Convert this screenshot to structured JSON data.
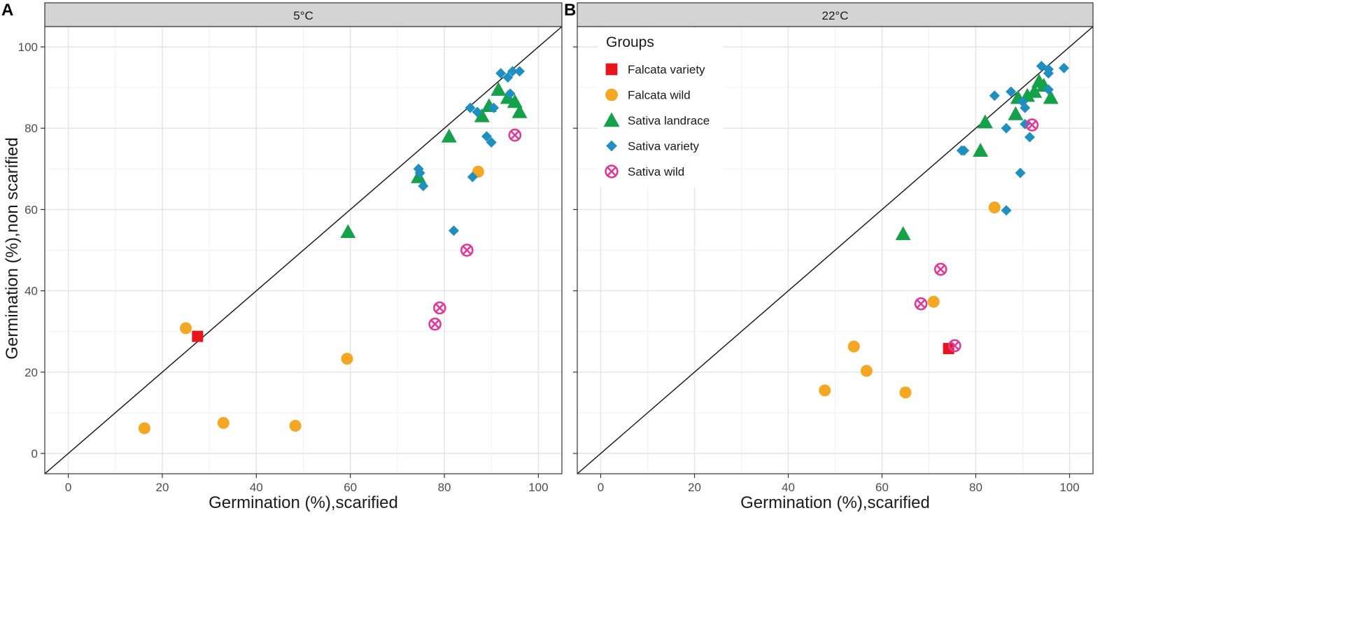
{
  "figure": {
    "ylabel": "Germination (%),non scarified",
    "xlabel": "Germination (%),scarified",
    "colors": {
      "Falcata variety": "#e8141c",
      "Falcata wild": "#f5a623",
      "Sativa landrace": "#15a04a",
      "Sativa variety": "#1e8fc0",
      "Sativa wild": "#e0399a",
      "strip": "#d4d4d4",
      "grid": "#e6e6e6",
      "panel_border": "#333333"
    }
  },
  "legend": {
    "title": "Groups",
    "items": [
      {
        "label": "Falcata variety",
        "shape": "square-icon"
      },
      {
        "label": "Falcata wild",
        "shape": "circle-icon"
      },
      {
        "label": "Sativa landrace",
        "shape": "triangle-icon"
      },
      {
        "label": "Sativa variety",
        "shape": "diamond-icon"
      },
      {
        "label": "Sativa wild",
        "shape": "circle-cross-icon"
      }
    ]
  },
  "chart_data": [
    {
      "type": "scatter",
      "panel_letter": "A",
      "strip_label": "5°C",
      "title": "5°C",
      "xlabel": "Germination (%),scarified",
      "ylabel": "Germination (%),non scarified",
      "xlim": [
        -5,
        105
      ],
      "ylim": [
        -5,
        105
      ],
      "xticks": [
        0,
        20,
        40,
        60,
        80,
        100
      ],
      "yticks": [
        0,
        20,
        40,
        60,
        80,
        100
      ],
      "reference_line": "y = x",
      "grid": true,
      "series": [
        {
          "name": "Falcata variety",
          "points": [
            [
              27.5,
              28.8
            ]
          ]
        },
        {
          "name": "Falcata wild",
          "points": [
            [
              25,
              30.8
            ],
            [
              16.2,
              6.2
            ],
            [
              33,
              7.5
            ],
            [
              48.3,
              6.8
            ],
            [
              59.3,
              23.3
            ],
            [
              87.2,
              69.3
            ]
          ]
        },
        {
          "name": "Sativa landrace",
          "points": [
            [
              59.5,
              54.5
            ],
            [
              74.5,
              68
            ],
            [
              81,
              78
            ],
            [
              88,
              83
            ],
            [
              89.5,
              85.5
            ],
            [
              91.5,
              89.5
            ],
            [
              93.5,
              87.5
            ],
            [
              95,
              86.5
            ],
            [
              96,
              84
            ]
          ]
        },
        {
          "name": "Sativa variety",
          "points": [
            [
              74.5,
              70
            ],
            [
              74.8,
              69
            ],
            [
              75.5,
              65.8
            ],
            [
              82,
              54.8
            ],
            [
              85.5,
              85
            ],
            [
              87,
              84
            ],
            [
              86,
              68
            ],
            [
              89,
              78
            ],
            [
              90,
              76.5
            ],
            [
              90.5,
              85
            ],
            [
              92,
              93.5
            ],
            [
              93.5,
              92.5
            ],
            [
              94.5,
              94
            ],
            [
              94,
              88.5
            ],
            [
              96,
              94
            ]
          ]
        },
        {
          "name": "Sativa wild",
          "points": [
            [
              78,
              31.8
            ],
            [
              79,
              35.8
            ],
            [
              84.8,
              50
            ],
            [
              95,
              78.3
            ]
          ]
        }
      ]
    },
    {
      "type": "scatter",
      "panel_letter": "B",
      "strip_label": "22°C",
      "title": "22°C",
      "xlabel": "Germination (%),scarified",
      "ylabel": "Germination (%),non scarified",
      "xlim": [
        -5,
        105
      ],
      "ylim": [
        -5,
        105
      ],
      "xticks": [
        0,
        20,
        40,
        60,
        80,
        100
      ],
      "yticks": [
        0,
        20,
        40,
        60,
        80,
        100
      ],
      "reference_line": "y = x",
      "grid": true,
      "series": [
        {
          "name": "Falcata variety",
          "points": [
            [
              74.2,
              25.8
            ]
          ]
        },
        {
          "name": "Falcata wild",
          "points": [
            [
              47.8,
              15.5
            ],
            [
              54,
              26.3
            ],
            [
              56.7,
              20.3
            ],
            [
              65,
              15
            ],
            [
              71,
              37.3
            ],
            [
              84,
              60.5
            ]
          ]
        },
        {
          "name": "Sativa landrace",
          "points": [
            [
              64.5,
              54
            ],
            [
              81,
              74.5
            ],
            [
              82,
              81.5
            ],
            [
              88.5,
              83.5
            ],
            [
              89,
              87.5
            ],
            [
              91,
              88
            ],
            [
              92.5,
              89
            ],
            [
              93.5,
              91.5
            ],
            [
              94.5,
              90.5
            ],
            [
              96,
              87.5
            ]
          ]
        },
        {
          "name": "Sativa variety",
          "points": [
            [
              77,
              74.5
            ],
            [
              77.5,
              74.5
            ],
            [
              84,
              88
            ],
            [
              86.5,
              80
            ],
            [
              86.5,
              59.8
            ],
            [
              87.5,
              89
            ],
            [
              89.5,
              69
            ],
            [
              90,
              86.5
            ],
            [
              90.5,
              85
            ],
            [
              90.5,
              81
            ],
            [
              91.5,
              77.8
            ],
            [
              94,
              95.3
            ],
            [
              95.5,
              93.5
            ],
            [
              95.5,
              94.5
            ],
            [
              95.5,
              89.5
            ],
            [
              98.8,
              94.8
            ]
          ]
        },
        {
          "name": "Sativa wild",
          "points": [
            [
              68.3,
              36.8
            ],
            [
              72.5,
              45.3
            ],
            [
              75.5,
              26.5
            ],
            [
              92,
              80.8
            ]
          ]
        }
      ]
    }
  ]
}
